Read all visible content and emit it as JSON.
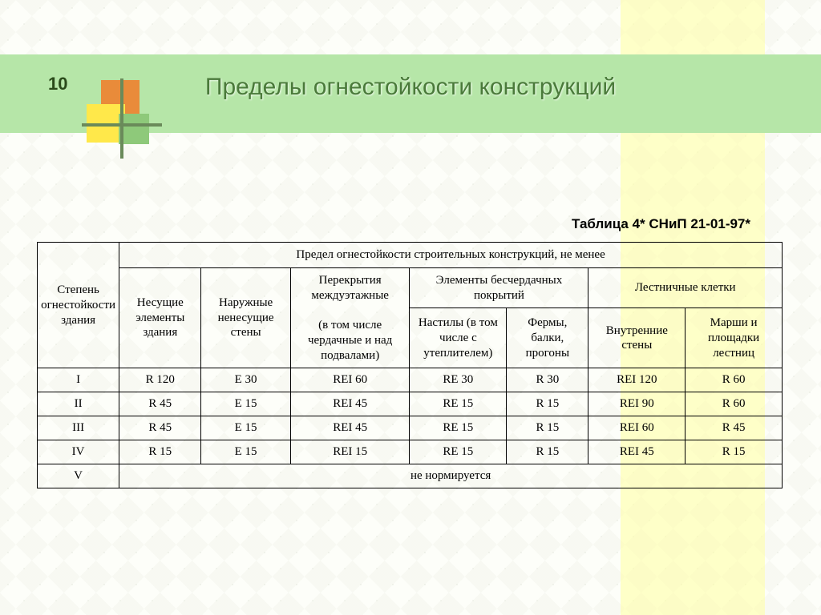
{
  "page_number": "10",
  "title": "Пределы огнестойкости конструкций",
  "caption": "Таблица 4* СНиП 21-01-97*",
  "colors": {
    "header_band": "#b6e6a8",
    "title_text": "#4a7a3a",
    "yellow_band": "rgba(255,255,160,0.55)",
    "logo_orange": "#e98b3a",
    "logo_yellow": "#ffe84a",
    "logo_green": "#8ec97a",
    "border": "#000000"
  },
  "table": {
    "type": "table",
    "header": {
      "row1_col1": "Степень огнестойкости здания",
      "row1_merge": "Предел огнестойкости строительных конструкций,  не менее",
      "row2": {
        "c1": "Несущие элементы здания",
        "c2": "Наружные ненесущие стены",
        "c3": "Перекрытия междуэтажные",
        "c3_sub": "(в том числе чердачные и над подвалами)",
        "c4": "Элементы бесчердачных покрытий",
        "c5": "Лестничные клетки"
      },
      "row3": {
        "c4a": "Настилы (в том числе с утеплителем)",
        "c4b": "Фермы, балки, прогоны",
        "c5a": "Внутренние стены",
        "c5b": "Марши и площадки лестниц"
      }
    },
    "rows": [
      {
        "deg": "I",
        "v": [
          "R 120",
          "E 30",
          "REI 60",
          "RE 30",
          "R 30",
          "REI 120",
          "R 60"
        ]
      },
      {
        "deg": "II",
        "v": [
          "R 45",
          "E 15",
          "REI 45",
          "RE 15",
          "R 15",
          "REI 90",
          "R 60"
        ]
      },
      {
        "deg": "III",
        "v": [
          "R 45",
          "E 15",
          "REI 45",
          "RE 15",
          "R 15",
          "REI 60",
          "R 45"
        ]
      },
      {
        "deg": "IV",
        "v": [
          "R 15",
          "E 15",
          "REI 15",
          "RE 15",
          "R 15",
          "REI 45",
          "R 15"
        ]
      }
    ],
    "last_row": {
      "deg": "V",
      "note": "не нормируется"
    },
    "col_widths_pct": [
      11,
      11,
      12,
      16,
      13,
      11,
      13,
      13
    ]
  }
}
